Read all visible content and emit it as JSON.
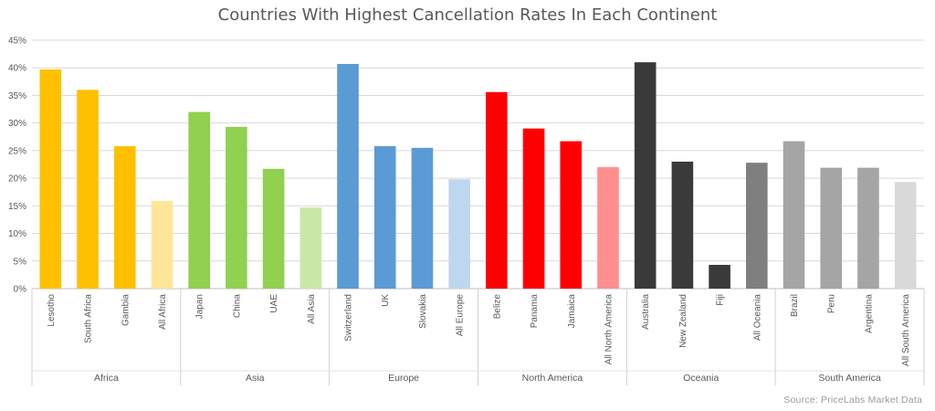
{
  "chart_data": {
    "type": "bar",
    "title": "Countries With Highest Cancellation Rates In Each Continent",
    "ylim": [
      0,
      45
    ],
    "yticks": [
      "0%",
      "5%",
      "10%",
      "15%",
      "20%",
      "25%",
      "30%",
      "35%",
      "40%",
      "45%"
    ],
    "grid": true,
    "groups": [
      {
        "name": "Africa",
        "bars": [
          {
            "label": "Lesotho",
            "value": 39.7,
            "color": "#FFC000"
          },
          {
            "label": "South Africa",
            "value": 36.0,
            "color": "#FFC000"
          },
          {
            "label": "Gambia",
            "value": 25.8,
            "color": "#FFC000"
          },
          {
            "label": "All Africa",
            "value": 15.9,
            "color": "#FFE699"
          }
        ]
      },
      {
        "name": "Asia",
        "bars": [
          {
            "label": "Japan",
            "value": 32.0,
            "color": "#92D050"
          },
          {
            "label": "China",
            "value": 29.3,
            "color": "#92D050"
          },
          {
            "label": "UAE",
            "value": 21.7,
            "color": "#92D050"
          },
          {
            "label": "All Asia",
            "value": 14.7,
            "color": "#C9E8A8"
          }
        ]
      },
      {
        "name": "Europe",
        "bars": [
          {
            "label": "Switzerland",
            "value": 40.7,
            "color": "#5B9BD5"
          },
          {
            "label": "UK",
            "value": 25.8,
            "color": "#5B9BD5"
          },
          {
            "label": "Slovakia",
            "value": 25.5,
            "color": "#5B9BD5"
          },
          {
            "label": "All Europe",
            "value": 19.8,
            "color": "#BDD7EE"
          }
        ]
      },
      {
        "name": "North America",
        "bars": [
          {
            "label": "Belize",
            "value": 35.6,
            "color": "#FF0000"
          },
          {
            "label": "Panama",
            "value": 29.0,
            "color": "#FF0000"
          },
          {
            "label": "Jamaica",
            "value": 26.7,
            "color": "#FF0000"
          },
          {
            "label": "All North America",
            "value": 22.0,
            "color": "#FF8F8F"
          }
        ]
      },
      {
        "name": "Oceania",
        "bars": [
          {
            "label": "Australia",
            "value": 41.0,
            "color": "#3A3A3A"
          },
          {
            "label": "New Zealand",
            "value": 23.0,
            "color": "#3A3A3A"
          },
          {
            "label": "Fiji",
            "value": 4.3,
            "color": "#3A3A3A"
          },
          {
            "label": "All Oceania",
            "value": 22.8,
            "color": "#7F7F7F"
          }
        ]
      },
      {
        "name": "South America",
        "bars": [
          {
            "label": "Brazil",
            "value": 26.7,
            "color": "#A5A5A5"
          },
          {
            "label": "Peru",
            "value": 21.9,
            "color": "#A5A5A5"
          },
          {
            "label": "Argentina",
            "value": 21.9,
            "color": "#A5A5A5"
          },
          {
            "label": "All South America",
            "value": 19.3,
            "color": "#D9D9D9"
          }
        ]
      }
    ]
  },
  "source": "Source: PriceLabs Market Data"
}
